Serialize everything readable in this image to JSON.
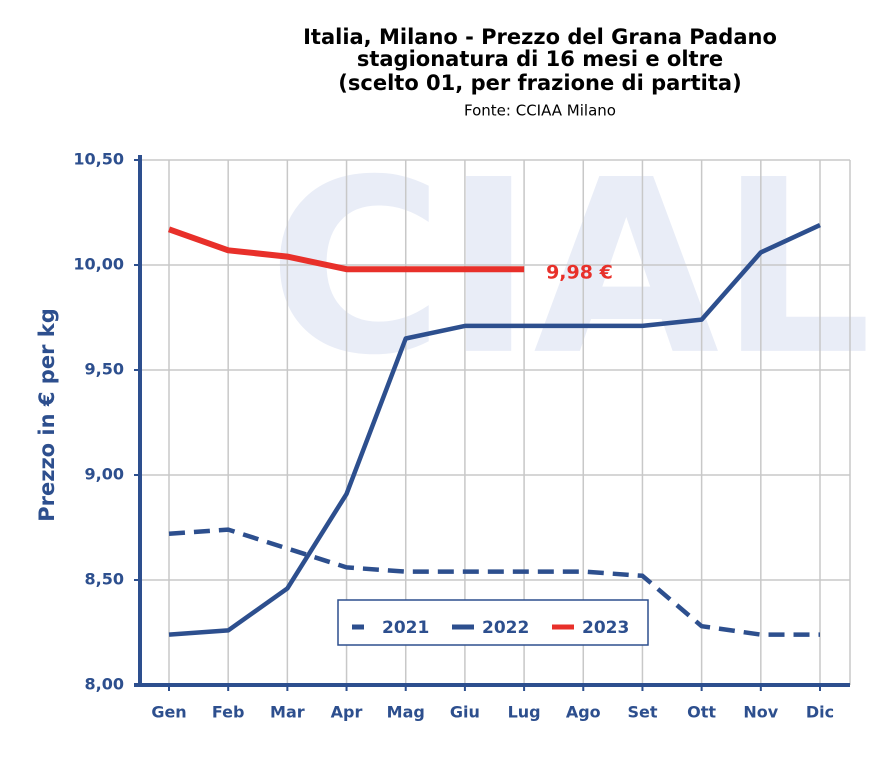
{
  "chart_data": {
    "type": "line",
    "title": [
      "Italia, Milano - Prezzo del Grana Padano",
      "stagionatura di 16 mesi e oltre",
      "(scelto 01, per frazione di partita)"
    ],
    "subtitle": "Fonte: CCIAA Milano",
    "watermark": "CIAL",
    "y_label": "Prezzo in € per kg",
    "categories": [
      "Gen",
      "Feb",
      "Mar",
      "Apr",
      "Mag",
      "Giu",
      "Lug",
      "Ago",
      "Set",
      "Ott",
      "Nov",
      "Dic"
    ],
    "series": [
      {
        "name": "2021",
        "color": "#2d4f8e",
        "style": "dashed",
        "values": [
          8.72,
          8.74,
          8.65,
          8.56,
          8.54,
          8.54,
          8.54,
          8.54,
          8.52,
          8.28,
          8.24,
          8.24
        ]
      },
      {
        "name": "2022",
        "color": "#2d4f8e",
        "style": "solid",
        "values": [
          8.24,
          8.26,
          8.46,
          8.91,
          9.65,
          9.71,
          9.71,
          9.71,
          9.71,
          9.74,
          10.06,
          10.19
        ]
      },
      {
        "name": "2023",
        "color": "#e8302a",
        "style": "solid",
        "values": [
          10.17,
          10.07,
          10.04,
          9.98,
          9.98,
          9.98,
          9.98,
          null,
          null,
          null,
          null,
          null
        ]
      }
    ],
    "annotation": {
      "text": "9,98 €",
      "series": 2,
      "index": 6
    },
    "ylim": [
      8,
      10.5
    ],
    "yticks": [
      {
        "value": 8,
        "label": "8,00"
      },
      {
        "value": 8.5,
        "label": "8,50"
      },
      {
        "value": 9,
        "label": "9,00"
      },
      {
        "value": 9.5,
        "label": "9,50"
      },
      {
        "value": 10,
        "label": "10,00"
      },
      {
        "value": 10.5,
        "label": "10,50"
      }
    ],
    "grid": true
  }
}
